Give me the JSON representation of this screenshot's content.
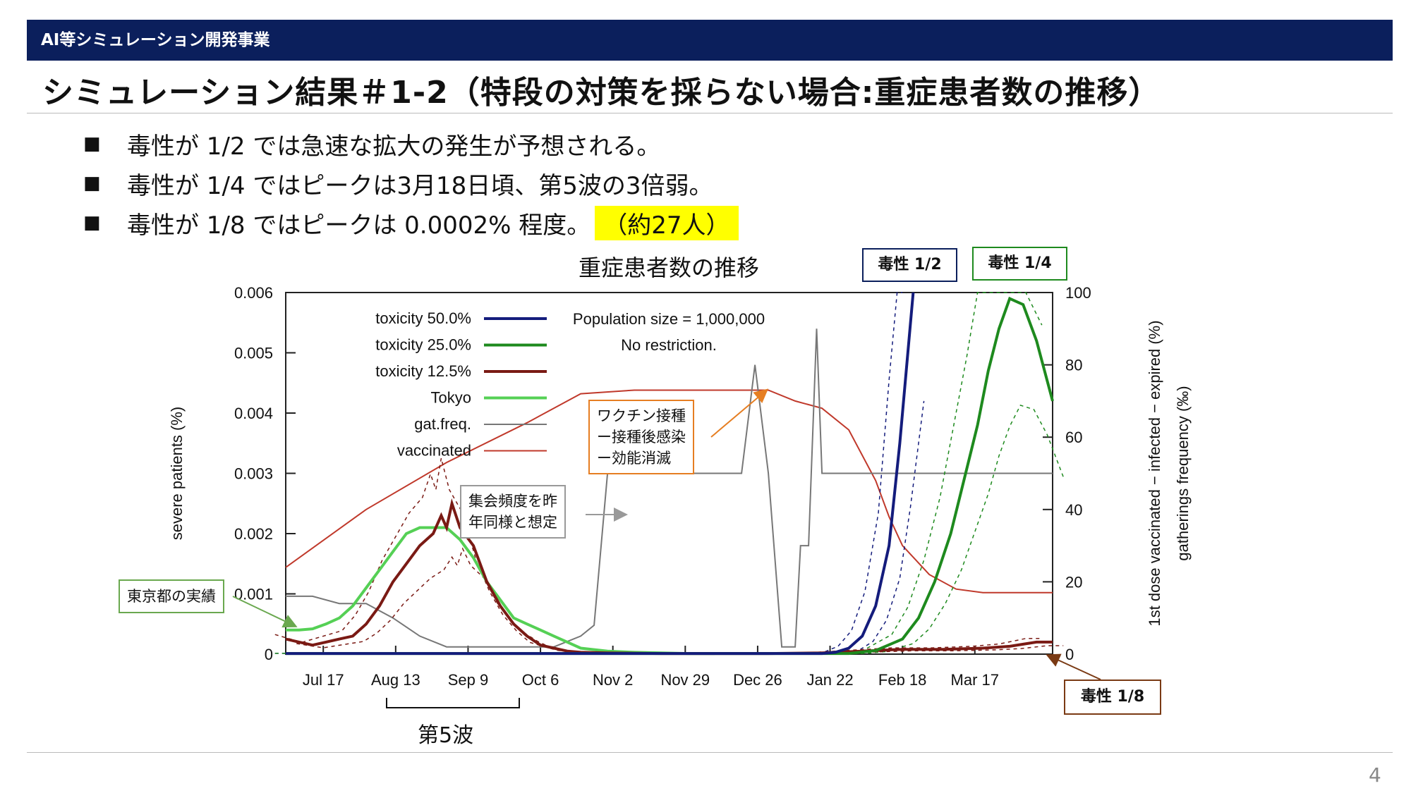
{
  "header": {
    "section": "AI等シミュレーション開発事業"
  },
  "slide": {
    "title": "シミュレーション結果＃1-2（特段の対策を採らない場合:重症患者数の推移）",
    "bullets": [
      "毒性が 1/2 では急速な拡大の発生が予想される。",
      "毒性が 1/4 ではピークは3月18日頃、第5波の3倍弱。",
      "毒性が 1/8 ではピークは 0.0002% 程度。"
    ],
    "bullet_highlight": "（約27人）",
    "bullet_mark": "■",
    "page_number": "4"
  },
  "annotations": {
    "tag_half": "毒性 1/2",
    "tag_quarter": "毒性 1/4",
    "tag_eighth": "毒性 1/8",
    "tokyo_record": "東京都の実績",
    "gathering_note": [
      "集会頻度を昨",
      "年同様と想定"
    ],
    "vaccine_note": [
      "ワクチン接種",
      "ー接種後感染",
      "ー効能消滅"
    ],
    "wave5": "第5波"
  },
  "colors": {
    "header_bg": "#0b1f5c",
    "tox50": "#141c7c",
    "tox25": "#1e8a1e",
    "tox125": "#7a1a14",
    "tokyo": "#55d055",
    "gat": "#777777",
    "vacc": "#c0392b",
    "highlight": "#ffff00",
    "callout_green": "#6aa84f",
    "callout_orange": "#e67e22",
    "callout_gray": "#999999"
  },
  "chart_data": {
    "type": "line",
    "title": "重症患者数の推移",
    "ylabel": "severe patients (%)",
    "y2label": [
      "1st dose vaccinated − infected − expired (%)",
      "gatherings frequency (‰)"
    ],
    "ylim": [
      0,
      0.006
    ],
    "y2lim": [
      0,
      100
    ],
    "xlim": [
      0,
      286
    ],
    "y_ticks": [
      "0",
      "0.001",
      "0.002",
      "0.003",
      "0.004",
      "0.005",
      "0.006"
    ],
    "y2_ticks": [
      "0",
      "20",
      "40",
      "60",
      "80",
      "100"
    ],
    "x_tick_labels": [
      "Jul 17",
      "Aug 13",
      "Sep 9",
      "Oct 6",
      "Nov 2",
      "Nov 29",
      "Dec 26",
      "Jan 22",
      "Feb 18",
      "Mar 17"
    ],
    "x_ticks": [
      14,
      41,
      68,
      95,
      122,
      149,
      176,
      203,
      230,
      257
    ],
    "annotation_text": [
      "Population size = 1,000,000",
      "No restriction."
    ],
    "series": [
      {
        "name": "toxicity 50.0%",
        "axis": "left",
        "x": [
          0,
          200,
          205,
          210,
          215,
          220,
          225,
          229,
          232,
          234
        ],
        "y": [
          1e-05,
          1e-05,
          3e-05,
          0.0001,
          0.0003,
          0.0008,
          0.0018,
          0.0035,
          0.005,
          0.006
        ]
      },
      {
        "name": "toxicity 25.0%",
        "axis": "left",
        "x": [
          0,
          210,
          220,
          230,
          236,
          242,
          248,
          253,
          258,
          262,
          266,
          270,
          275,
          280,
          286
        ],
        "y": [
          1e-05,
          1e-05,
          6e-05,
          0.00025,
          0.0006,
          0.0012,
          0.002,
          0.0029,
          0.0038,
          0.0047,
          0.0054,
          0.0059,
          0.0058,
          0.0052,
          0.0042
        ]
      },
      {
        "name": "toxicity 12.5%",
        "axis": "left",
        "x": [
          0,
          5,
          10,
          15,
          20,
          25,
          30,
          35,
          40,
          45,
          50,
          55,
          58,
          60,
          62,
          65,
          70,
          75,
          80,
          85,
          90,
          95,
          100,
          105,
          110,
          120,
          140,
          160,
          180,
          200,
          215,
          230,
          245,
          260,
          270,
          280,
          286
        ],
        "y": [
          0.00025,
          0.0002,
          0.00015,
          0.0002,
          0.00025,
          0.0003,
          0.0005,
          0.0008,
          0.0012,
          0.0015,
          0.0018,
          0.002,
          0.0023,
          0.0021,
          0.0025,
          0.0021,
          0.0018,
          0.0012,
          0.0008,
          0.0005,
          0.0003,
          0.00015,
          0.0001,
          5e-05,
          3e-05,
          2e-05,
          1e-05,
          1e-05,
          1e-05,
          2e-05,
          5e-05,
          8e-05,
          8e-05,
          0.0001,
          0.00013,
          0.0002,
          0.0002
        ]
      },
      {
        "name": "Tokyo",
        "axis": "left",
        "x": [
          0,
          5,
          10,
          15,
          20,
          25,
          30,
          35,
          40,
          45,
          50,
          55,
          60,
          65,
          70,
          75,
          80,
          85,
          90,
          95,
          100,
          105,
          110,
          120,
          130,
          140,
          150,
          160
        ],
        "y": [
          0.0004,
          0.0004,
          0.00042,
          0.0005,
          0.0006,
          0.0008,
          0.0011,
          0.0014,
          0.0017,
          0.002,
          0.0021,
          0.0021,
          0.0021,
          0.0019,
          0.0016,
          0.0012,
          0.0009,
          0.0006,
          0.0005,
          0.0004,
          0.0003,
          0.0002,
          0.0001,
          5e-05,
          3e-05,
          2e-05,
          1e-05,
          1e-05
        ]
      },
      {
        "name": "gat.freq.",
        "axis": "right",
        "x": [
          0,
          10,
          20,
          30,
          40,
          50,
          60,
          70,
          80,
          90,
          100,
          110,
          115,
          120,
          125,
          130,
          140,
          150,
          160,
          170,
          175,
          180,
          185,
          190,
          192,
          195,
          198,
          200,
          203,
          206,
          210,
          220,
          230,
          240,
          250,
          260,
          270,
          286
        ],
        "y": [
          16,
          16,
          14,
          14,
          10,
          5,
          2,
          2,
          2,
          2,
          2,
          5,
          8,
          50,
          50,
          50,
          50,
          50,
          50,
          50,
          80,
          50,
          2,
          2,
          30,
          30,
          90,
          50,
          50,
          50,
          50,
          50,
          50,
          50,
          50,
          50,
          50,
          50
        ]
      },
      {
        "name": "vaccinated",
        "axis": "right",
        "x": [
          0,
          30,
          60,
          90,
          110,
          130,
          150,
          170,
          180,
          190,
          200,
          210,
          220,
          225,
          230,
          240,
          250,
          260,
          270,
          280,
          286
        ],
        "y": [
          24,
          40,
          53,
          64,
          72,
          73,
          73,
          73,
          73,
          70,
          68,
          62,
          48,
          38,
          30,
          22,
          18,
          17,
          17,
          17,
          17
        ]
      }
    ]
  }
}
